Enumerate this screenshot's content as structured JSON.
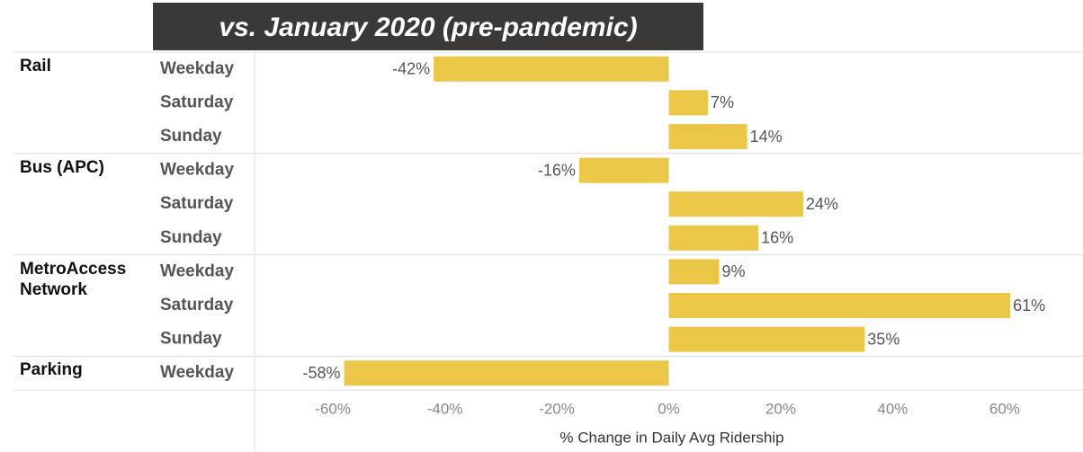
{
  "chart_data": {
    "type": "bar",
    "orientation": "horizontal",
    "title": "vs. January 2020 (pre-pandemic)",
    "xlabel": "% Change in Daily Avg Ridership",
    "color": "#ebc747",
    "groups": [
      {
        "name": "Rail",
        "categories": [
          "Weekday",
          "Saturday",
          "Sunday"
        ],
        "values": [
          -42,
          7,
          14
        ],
        "value_labels": [
          "-42%",
          "7%",
          "14%"
        ]
      },
      {
        "name": "Bus (APC)",
        "categories": [
          "Weekday",
          "Saturday",
          "Sunday"
        ],
        "values": [
          -16,
          24,
          16
        ],
        "value_labels": [
          "-16%",
          "24%",
          "16%"
        ]
      },
      {
        "name": "MetroAccess Network",
        "categories": [
          "Weekday",
          "Saturday",
          "Sunday"
        ],
        "values": [
          9,
          61,
          35
        ],
        "value_labels": [
          "9%",
          "61%",
          "35%"
        ]
      },
      {
        "name": "Parking",
        "categories": [
          "Weekday"
        ],
        "values": [
          -58
        ],
        "value_labels": [
          "-58%"
        ]
      }
    ],
    "xlim": [
      -74,
      74
    ],
    "xticks": [
      {
        "value": -60,
        "label": "-60%"
      },
      {
        "value": -40,
        "label": "-40%"
      },
      {
        "value": -20,
        "label": "-20%"
      },
      {
        "value": 0,
        "label": "0%"
      },
      {
        "value": 20,
        "label": "20%"
      },
      {
        "value": 40,
        "label": "40%"
      },
      {
        "value": 60,
        "label": "60%"
      }
    ]
  }
}
